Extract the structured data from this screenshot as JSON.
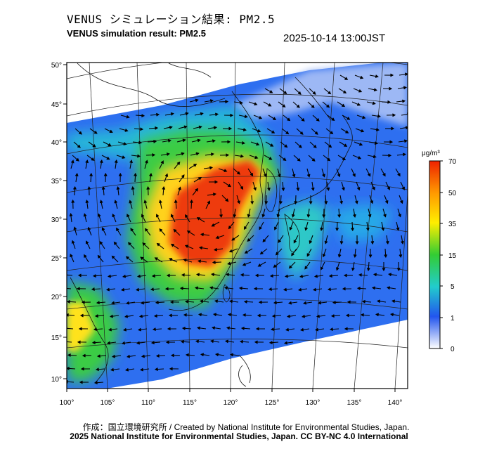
{
  "header": {
    "title_jp": "VENUS シミュレーション結果: PM2.5",
    "title_en": "VENUS simulation result: PM2.5",
    "timestamp": "2025-10-14 13:00JST"
  },
  "map": {
    "lat_labels": [
      "50°",
      "45°",
      "40°",
      "35°",
      "30°",
      "25°",
      "20°",
      "15°",
      "10°"
    ],
    "lon_labels": [
      "100°",
      "105°",
      "110°",
      "115°",
      "120°",
      "125°",
      "130°",
      "135°",
      "140°"
    ],
    "lat_values": [
      50,
      45,
      40,
      35,
      30,
      25,
      20,
      15,
      10
    ],
    "lon_values": [
      100,
      105,
      110,
      115,
      120,
      125,
      130,
      135,
      140
    ]
  },
  "colorbar": {
    "unit": "μg/m³",
    "tick_labels": [
      "70",
      "50",
      "35",
      "15",
      "5",
      "1",
      "0"
    ],
    "colors": [
      "#ee2200",
      "#ff9900",
      "#ffee00",
      "#33cc33",
      "#22cccc",
      "#2255ee",
      "#ffffff"
    ]
  },
  "footer": {
    "credit_line1": "作成：国立環境研究所 / Created by National Institute for Environmental Studies, Japan.",
    "credit_line2": "2025 National Institute for Environmental Studies, Japan. CC BY-NC 4.0 International"
  }
}
